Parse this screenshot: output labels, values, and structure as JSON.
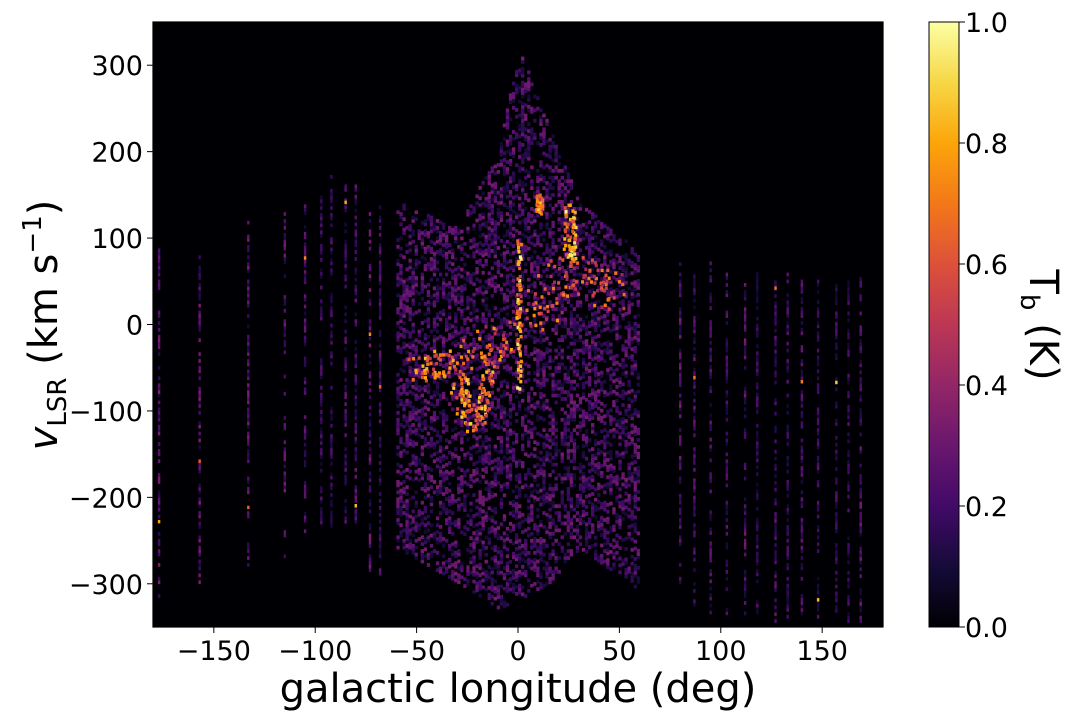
{
  "chart_data": {
    "type": "heatmap",
    "title": "",
    "xlabel": "galactic longitude (deg)",
    "ylabel": {
      "main": "v",
      "subscript": "LSR",
      "units_prefix": " (km s",
      "units_sup": "−1",
      "units_suffix": ")"
    },
    "xlim": [
      -180,
      180
    ],
    "ylim": [
      -350,
      350
    ],
    "xticks": [
      {
        "value": -150,
        "label": "−150"
      },
      {
        "value": -100,
        "label": "−100"
      },
      {
        "value": -50,
        "label": "−50"
      },
      {
        "value": 0,
        "label": "0"
      },
      {
        "value": 50,
        "label": "50"
      },
      {
        "value": 100,
        "label": "100"
      },
      {
        "value": 150,
        "label": "150"
      }
    ],
    "yticks": [
      {
        "value": 300,
        "label": "300"
      },
      {
        "value": 200,
        "label": "200"
      },
      {
        "value": 100,
        "label": "100"
      },
      {
        "value": 0,
        "label": "0"
      },
      {
        "value": -100,
        "label": "−100"
      },
      {
        "value": -200,
        "label": "−200"
      },
      {
        "value": -300,
        "label": "−300"
      }
    ],
    "colormap": "inferno",
    "colorbar": {
      "label_main": "T",
      "label_sub": "b",
      "label_units": " (K)",
      "range": [
        0.0,
        1.0
      ],
      "ticks": [
        {
          "value": 0.0,
          "label": "0.0"
        },
        {
          "value": 0.2,
          "label": "0.2"
        },
        {
          "value": 0.4,
          "label": "0.4"
        },
        {
          "value": 0.6,
          "label": "0.6"
        },
        {
          "value": 0.8,
          "label": "0.8"
        },
        {
          "value": 1.0,
          "label": "1.0"
        }
      ]
    },
    "background_value": 0.0,
    "sightline_strips": [
      {
        "l": -177,
        "vmin": -320,
        "vmax": 85,
        "t": 0.3
      },
      {
        "l": -157,
        "vmin": -300,
        "vmax": 85,
        "t": 0.3
      },
      {
        "l": -133,
        "vmin": -280,
        "vmax": 120,
        "t": 0.3
      },
      {
        "l": -115,
        "vmin": -270,
        "vmax": 130,
        "t": 0.28
      },
      {
        "l": -105,
        "vmin": -245,
        "vmax": 140,
        "t": 0.25
      },
      {
        "l": -97,
        "vmin": -235,
        "vmax": 160,
        "t": 0.22
      },
      {
        "l": -92,
        "vmin": -235,
        "vmax": 170,
        "t": 0.22
      },
      {
        "l": -85,
        "vmin": -230,
        "vmax": 160,
        "t": 0.25
      },
      {
        "l": -80,
        "vmin": -230,
        "vmax": 160,
        "t": 0.25
      },
      {
        "l": -73,
        "vmin": -290,
        "vmax": 140,
        "t": 0.3
      },
      {
        "l": -68,
        "vmin": -290,
        "vmax": 140,
        "t": 0.25
      },
      {
        "l": 80,
        "vmin": -300,
        "vmax": 70,
        "t": 0.3
      },
      {
        "l": 87,
        "vmin": -330,
        "vmax": 70,
        "t": 0.25
      },
      {
        "l": 95,
        "vmin": -335,
        "vmax": 70,
        "t": 0.25
      },
      {
        "l": 103,
        "vmin": -340,
        "vmax": 65,
        "t": 0.25
      },
      {
        "l": 112,
        "vmin": -340,
        "vmax": 60,
        "t": 0.28
      },
      {
        "l": 118,
        "vmin": -335,
        "vmax": 60,
        "t": 0.22
      },
      {
        "l": 127,
        "vmin": -345,
        "vmax": 60,
        "t": 0.25
      },
      {
        "l": 133,
        "vmin": -340,
        "vmax": 60,
        "t": 0.22
      },
      {
        "l": 140,
        "vmin": -340,
        "vmax": 60,
        "t": 0.25
      },
      {
        "l": 148,
        "vmin": -340,
        "vmax": 60,
        "t": 0.22
      },
      {
        "l": 157,
        "vmin": -345,
        "vmax": 45,
        "t": 0.22
      },
      {
        "l": 163,
        "vmin": -345,
        "vmax": 50,
        "t": 0.22
      },
      {
        "l": 169,
        "vmin": -345,
        "vmax": 60,
        "t": 0.28
      }
    ],
    "bright_features": [
      {
        "l_start": -50,
        "v_start": -55,
        "l_end": -35,
        "v_end": -45,
        "l_width": 14,
        "v_width": 30,
        "t": 0.85
      },
      {
        "l_start": -30,
        "v_start": -70,
        "l_end": -25,
        "v_end": -110,
        "l_width": 8,
        "v_width": 40,
        "t": 0.9
      },
      {
        "l_start": -25,
        "v_start": -50,
        "l_end": -5,
        "v_end": -10,
        "l_width": 16,
        "v_width": 40,
        "t": 0.8
      },
      {
        "l_start": 0,
        "v_start": -75,
        "l_end": 0,
        "v_end": 95,
        "l_width": 2,
        "v_width": 10,
        "t": 1.0
      },
      {
        "l_start": 5,
        "v_start": 5,
        "l_end": 25,
        "v_end": 55,
        "l_width": 20,
        "v_width": 50,
        "t": 0.75
      },
      {
        "l_start": 25,
        "v_start": 70,
        "l_end": 25,
        "v_end": 130,
        "l_width": 6,
        "v_width": 20,
        "t": 1.0
      },
      {
        "l_start": 30,
        "v_start": 60,
        "l_end": 45,
        "v_end": 30,
        "l_width": 18,
        "v_width": 40,
        "t": 0.75
      },
      {
        "l_start": -20,
        "v_start": -120,
        "l_end": -15,
        "v_end": -60,
        "l_width": 6,
        "v_width": 20,
        "t": 0.9
      },
      {
        "l_start": 10,
        "v_start": 130,
        "l_end": 10,
        "v_end": 145,
        "l_width": 3,
        "v_width": 10,
        "t": 0.9
      }
    ],
    "diffuse_emission_envelope": [
      {
        "l": -60,
        "vmin": -260,
        "vmax": 140
      },
      {
        "l": -30,
        "vmin": -300,
        "vmax": 110
      },
      {
        "l": -10,
        "vmin": -330,
        "vmax": 200
      },
      {
        "l": 0,
        "vmin": -320,
        "vmax": 320
      },
      {
        "l": 15,
        "vmin": -300,
        "vmax": 225
      },
      {
        "l": 30,
        "vmin": -260,
        "vmax": 140
      },
      {
        "l": 60,
        "vmin": -310,
        "vmax": 80
      }
    ]
  }
}
